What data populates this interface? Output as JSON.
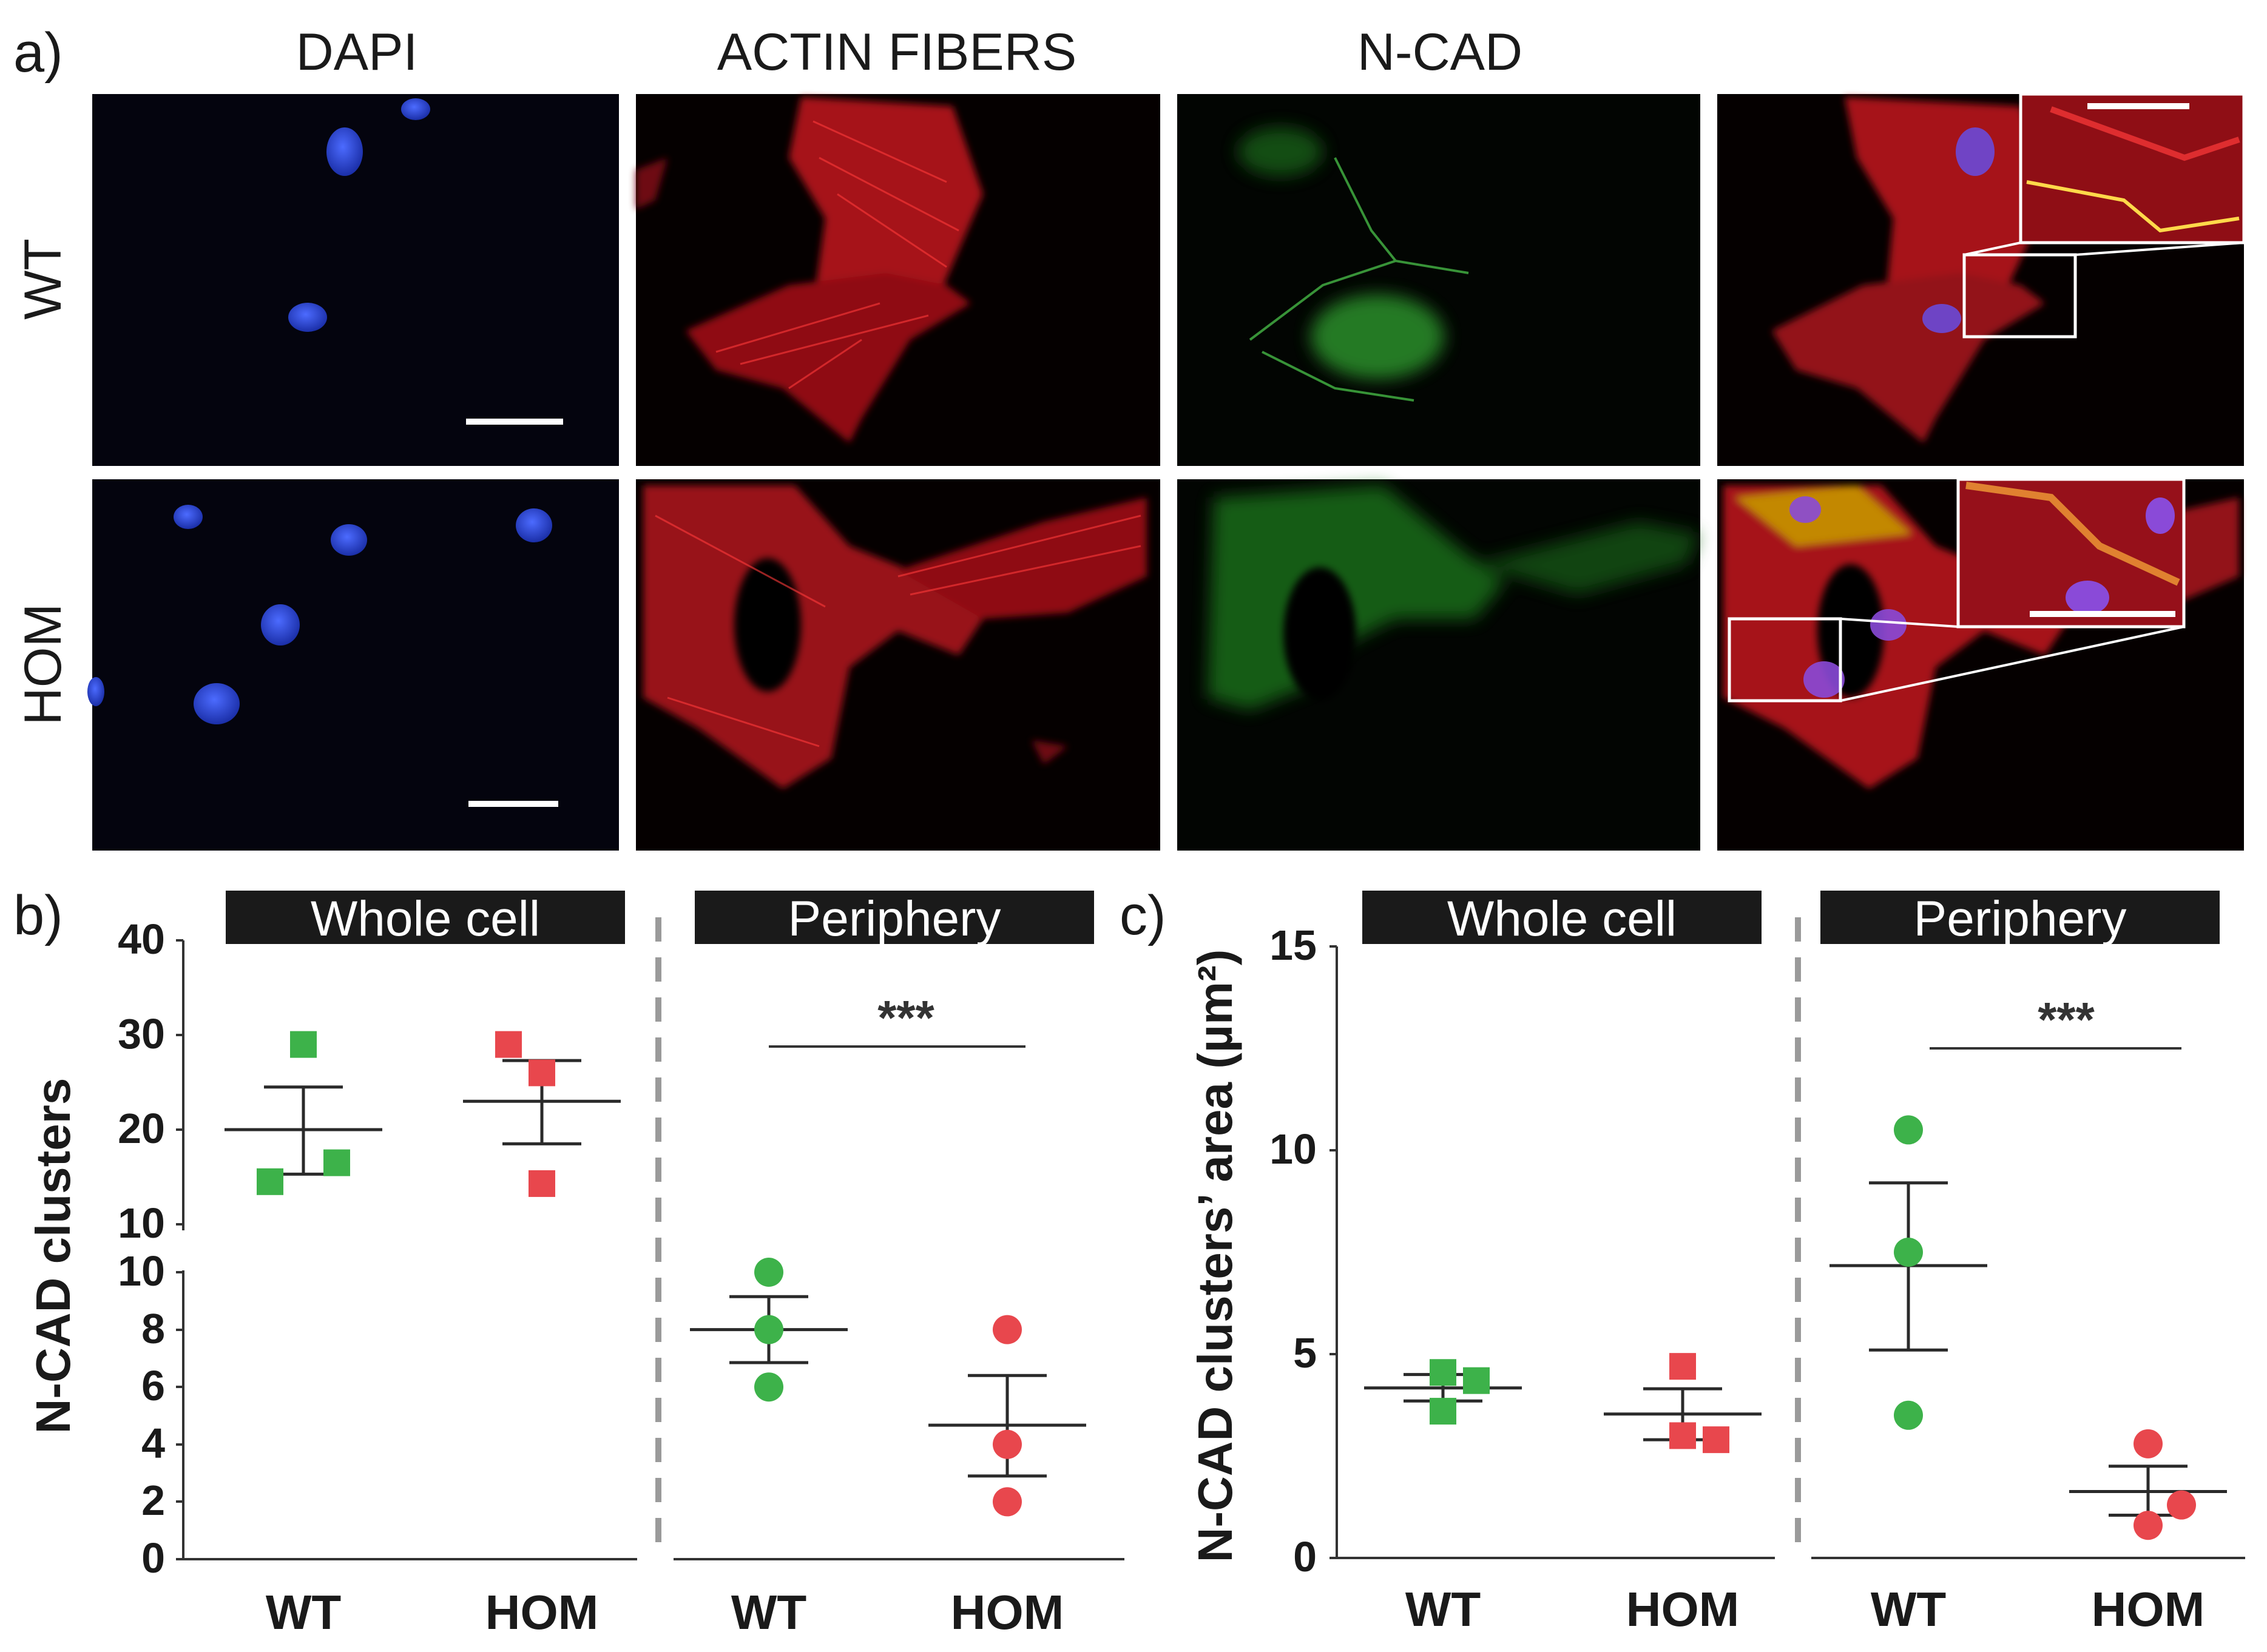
{
  "panel_labels": {
    "a": "a)",
    "b": "b)",
    "c": "c)"
  },
  "microscopy": {
    "columns": [
      "DAPI",
      "ACTIN FIBERS",
      "N-CAD"
    ],
    "rows": [
      "WT",
      "HOM"
    ]
  },
  "headers": {
    "whole": "Whole cell",
    "periphery": "Periphery"
  },
  "significance": "***",
  "chart_data": [
    {
      "type": "scatter",
      "panel": "b",
      "ylabel": "N-CAD clusters",
      "y_axis": "broken",
      "y_ticks_upper": [
        "40",
        "30",
        "20",
        "10"
      ],
      "y_ticks_lower": [
        "10",
        "8",
        "6",
        "4",
        "2",
        "0"
      ],
      "subpanels": [
        {
          "header": "Whole cell",
          "categories": [
            "WT",
            "HOM"
          ],
          "series": [
            {
              "category": "WT",
              "marker": "square",
              "color": "#3db24a",
              "points": [
                29,
                14.5,
                16.5
              ],
              "mean": 20,
              "sem_low": 15.3,
              "sem_high": 24.5
            },
            {
              "category": "HOM",
              "marker": "square",
              "color": "#e8474d",
              "points": [
                29,
                26,
                14.3
              ],
              "mean": 23,
              "sem_low": 18.5,
              "sem_high": 27.3
            }
          ]
        },
        {
          "header": "Periphery",
          "categories": [
            "WT",
            "HOM"
          ],
          "significance": "***",
          "series": [
            {
              "category": "WT",
              "marker": "circle",
              "color": "#3db24a",
              "points": [
                10,
                8,
                6
              ],
              "mean": 8,
              "sem_low": 6.85,
              "sem_high": 9.15
            },
            {
              "category": "HOM",
              "marker": "circle",
              "color": "#e8474d",
              "points": [
                8,
                4,
                2
              ],
              "mean": 4.67,
              "sem_low": 2.9,
              "sem_high": 6.4
            }
          ]
        }
      ]
    },
    {
      "type": "scatter",
      "panel": "c",
      "ylabel": "N-CAD clusters’ area (µm²)",
      "ylim": [
        0,
        15
      ],
      "y_ticks": [
        "15",
        "10",
        "5",
        "0"
      ],
      "subpanels": [
        {
          "header": "Whole cell",
          "categories": [
            "WT",
            "HOM"
          ],
          "series": [
            {
              "category": "WT",
              "marker": "square",
              "color": "#3db24a",
              "points": [
                4.55,
                4.35,
                3.6
              ],
              "mean": 4.17,
              "sem_low": 3.85,
              "sem_high": 4.5
            },
            {
              "category": "HOM",
              "marker": "square",
              "color": "#e8474d",
              "points": [
                4.7,
                3.0,
                2.9
              ],
              "mean": 3.53,
              "sem_low": 2.9,
              "sem_high": 4.15
            }
          ]
        },
        {
          "header": "Periphery",
          "categories": [
            "WT",
            "HOM"
          ],
          "significance": "***",
          "series": [
            {
              "category": "WT",
              "marker": "circle",
              "color": "#3db24a",
              "points": [
                10.5,
                7.5,
                3.5
              ],
              "mean": 7.17,
              "sem_low": 5.1,
              "sem_high": 9.2
            },
            {
              "category": "HOM",
              "marker": "circle",
              "color": "#e8474d",
              "points": [
                2.8,
                1.3,
                0.8
              ],
              "mean": 1.63,
              "sem_low": 1.05,
              "sem_high": 2.25
            }
          ]
        }
      ]
    }
  ]
}
